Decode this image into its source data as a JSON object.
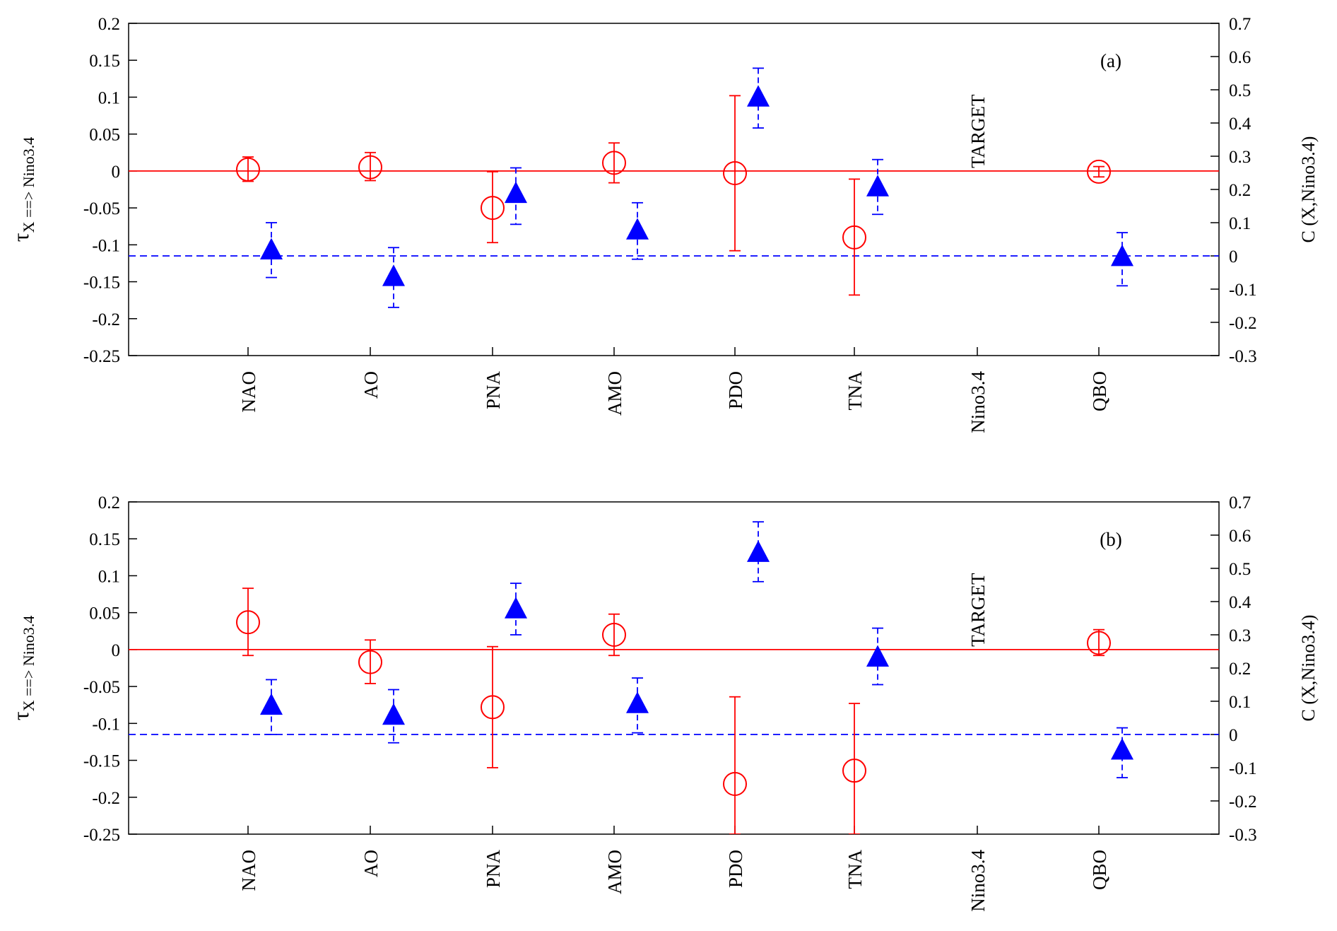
{
  "chart_data": [
    {
      "type": "scatter",
      "panel_label": "(a)",
      "annotation": "TARGET",
      "categories": [
        "NAO",
        "AO",
        "PNA",
        "AMO",
        "PDO",
        "TNA",
        "Nino3.4",
        "QBO"
      ],
      "y_left": {
        "label": "τX ==> Nino3.4",
        "label_main": "τ",
        "label_sub": "X ==> Nino3.4",
        "lim": [
          -0.25,
          0.2
        ],
        "ticks": [
          "0.2",
          "0.15",
          "0.1",
          "0.05",
          "0",
          "-0.05",
          "-0.1",
          "-0.15",
          "-0.2",
          "-0.25"
        ],
        "tick_values": [
          0.2,
          0.15,
          0.1,
          0.05,
          0,
          -0.05,
          -0.1,
          -0.15,
          -0.2,
          -0.25
        ]
      },
      "y_right": {
        "label": "C (X,Nino3.4)",
        "lim": [
          -0.3,
          0.7
        ],
        "ticks": [
          "0.7",
          "0.6",
          "0.5",
          "0.4",
          "0.3",
          "0.2",
          "0.1",
          "0",
          "-0.1",
          "-0.2",
          "-0.3"
        ],
        "tick_values": [
          0.7,
          0.6,
          0.5,
          0.4,
          0.3,
          0.2,
          0.1,
          0,
          -0.1,
          -0.2,
          -0.3
        ]
      },
      "series": [
        {
          "axis": "left",
          "marker": "open-circle",
          "color": "#ff0000",
          "reference_line": 0,
          "points": [
            {
              "cat": "NAO",
              "y": 0.002,
              "low": -0.014,
              "high": 0.019
            },
            {
              "cat": "AO",
              "y": 0.005,
              "low": -0.013,
              "high": 0.025
            },
            {
              "cat": "PNA",
              "y": -0.05,
              "low": -0.097,
              "high": -0.001
            },
            {
              "cat": "AMO",
              "y": 0.011,
              "low": -0.016,
              "high": 0.038
            },
            {
              "cat": "PDO",
              "y": -0.003,
              "low": -0.108,
              "high": 0.102
            },
            {
              "cat": "TNA",
              "y": -0.09,
              "low": -0.168,
              "high": -0.011
            },
            {
              "cat": "QBO",
              "y": -0.001,
              "low": -0.008,
              "high": 0.006
            }
          ]
        },
        {
          "axis": "right",
          "marker": "filled-triangle",
          "color": "#0000ff",
          "reference_line": 0,
          "points": [
            {
              "cat": "NAO",
              "y": 0.02,
              "low": -0.065,
              "high": 0.1
            },
            {
              "cat": "AO",
              "y": -0.06,
              "low": -0.155,
              "high": 0.025
            },
            {
              "cat": "PNA",
              "y": 0.19,
              "low": 0.095,
              "high": 0.265
            },
            {
              "cat": "AMO",
              "y": 0.08,
              "low": -0.01,
              "high": 0.16
            },
            {
              "cat": "PDO",
              "y": 0.48,
              "low": 0.385,
              "high": 0.565
            },
            {
              "cat": "TNA",
              "y": 0.21,
              "low": 0.125,
              "high": 0.29
            },
            {
              "cat": "QBO",
              "y": 0.0,
              "low": -0.09,
              "high": 0.07
            }
          ]
        }
      ]
    },
    {
      "type": "scatter",
      "panel_label": "(b)",
      "annotation": "TARGET",
      "categories": [
        "NAO",
        "AO",
        "PNA",
        "AMO",
        "PDO",
        "TNA",
        "Nino3.4",
        "QBO"
      ],
      "y_left": {
        "label": "τX ==> Nino3.4",
        "label_main": "τ",
        "label_sub": "X ==> Nino3.4",
        "lim": [
          -0.25,
          0.2
        ],
        "ticks": [
          "0.2",
          "0.15",
          "0.1",
          "0.05",
          "0",
          "-0.05",
          "-0.1",
          "-0.15",
          "-0.2",
          "-0.25"
        ],
        "tick_values": [
          0.2,
          0.15,
          0.1,
          0.05,
          0,
          -0.05,
          -0.1,
          -0.15,
          -0.2,
          -0.25
        ]
      },
      "y_right": {
        "label": "C (X,Nino3.4)",
        "lim": [
          -0.3,
          0.7
        ],
        "ticks": [
          "0.7",
          "0.6",
          "0.5",
          "0.4",
          "0.3",
          "0.2",
          "0.1",
          "0",
          "-0.1",
          "-0.2",
          "-0.3"
        ],
        "tick_values": [
          0.7,
          0.6,
          0.5,
          0.4,
          0.3,
          0.2,
          0.1,
          0,
          -0.1,
          -0.2,
          -0.3
        ]
      },
      "series": [
        {
          "axis": "left",
          "marker": "open-circle",
          "color": "#ff0000",
          "reference_line": 0,
          "points": [
            {
              "cat": "NAO",
              "y": 0.037,
              "low": -0.008,
              "high": 0.083
            },
            {
              "cat": "AO",
              "y": -0.017,
              "low": -0.046,
              "high": 0.013
            },
            {
              "cat": "PNA",
              "y": -0.078,
              "low": -0.16,
              "high": 0.004
            },
            {
              "cat": "AMO",
              "y": 0.02,
              "low": -0.008,
              "high": 0.048
            },
            {
              "cat": "PDO",
              "y": -0.182,
              "low": -0.25,
              "high": -0.064
            },
            {
              "cat": "TNA",
              "y": -0.164,
              "low": -0.25,
              "high": -0.073
            },
            {
              "cat": "QBO",
              "y": 0.009,
              "low": -0.008,
              "high": 0.027
            }
          ]
        },
        {
          "axis": "right",
          "marker": "filled-triangle",
          "color": "#0000ff",
          "reference_line": 0,
          "points": [
            {
              "cat": "NAO",
              "y": 0.09,
              "low": 0.0,
              "high": 0.165
            },
            {
              "cat": "AO",
              "y": 0.06,
              "low": -0.025,
              "high": 0.135
            },
            {
              "cat": "PNA",
              "y": 0.38,
              "low": 0.3,
              "high": 0.455
            },
            {
              "cat": "AMO",
              "y": 0.095,
              "low": 0.005,
              "high": 0.17
            },
            {
              "cat": "PDO",
              "y": 0.55,
              "low": 0.46,
              "high": 0.64
            },
            {
              "cat": "TNA",
              "y": 0.235,
              "low": 0.15,
              "high": 0.32
            },
            {
              "cat": "QBO",
              "y": -0.045,
              "low": -0.13,
              "high": 0.02
            }
          ]
        }
      ]
    }
  ]
}
